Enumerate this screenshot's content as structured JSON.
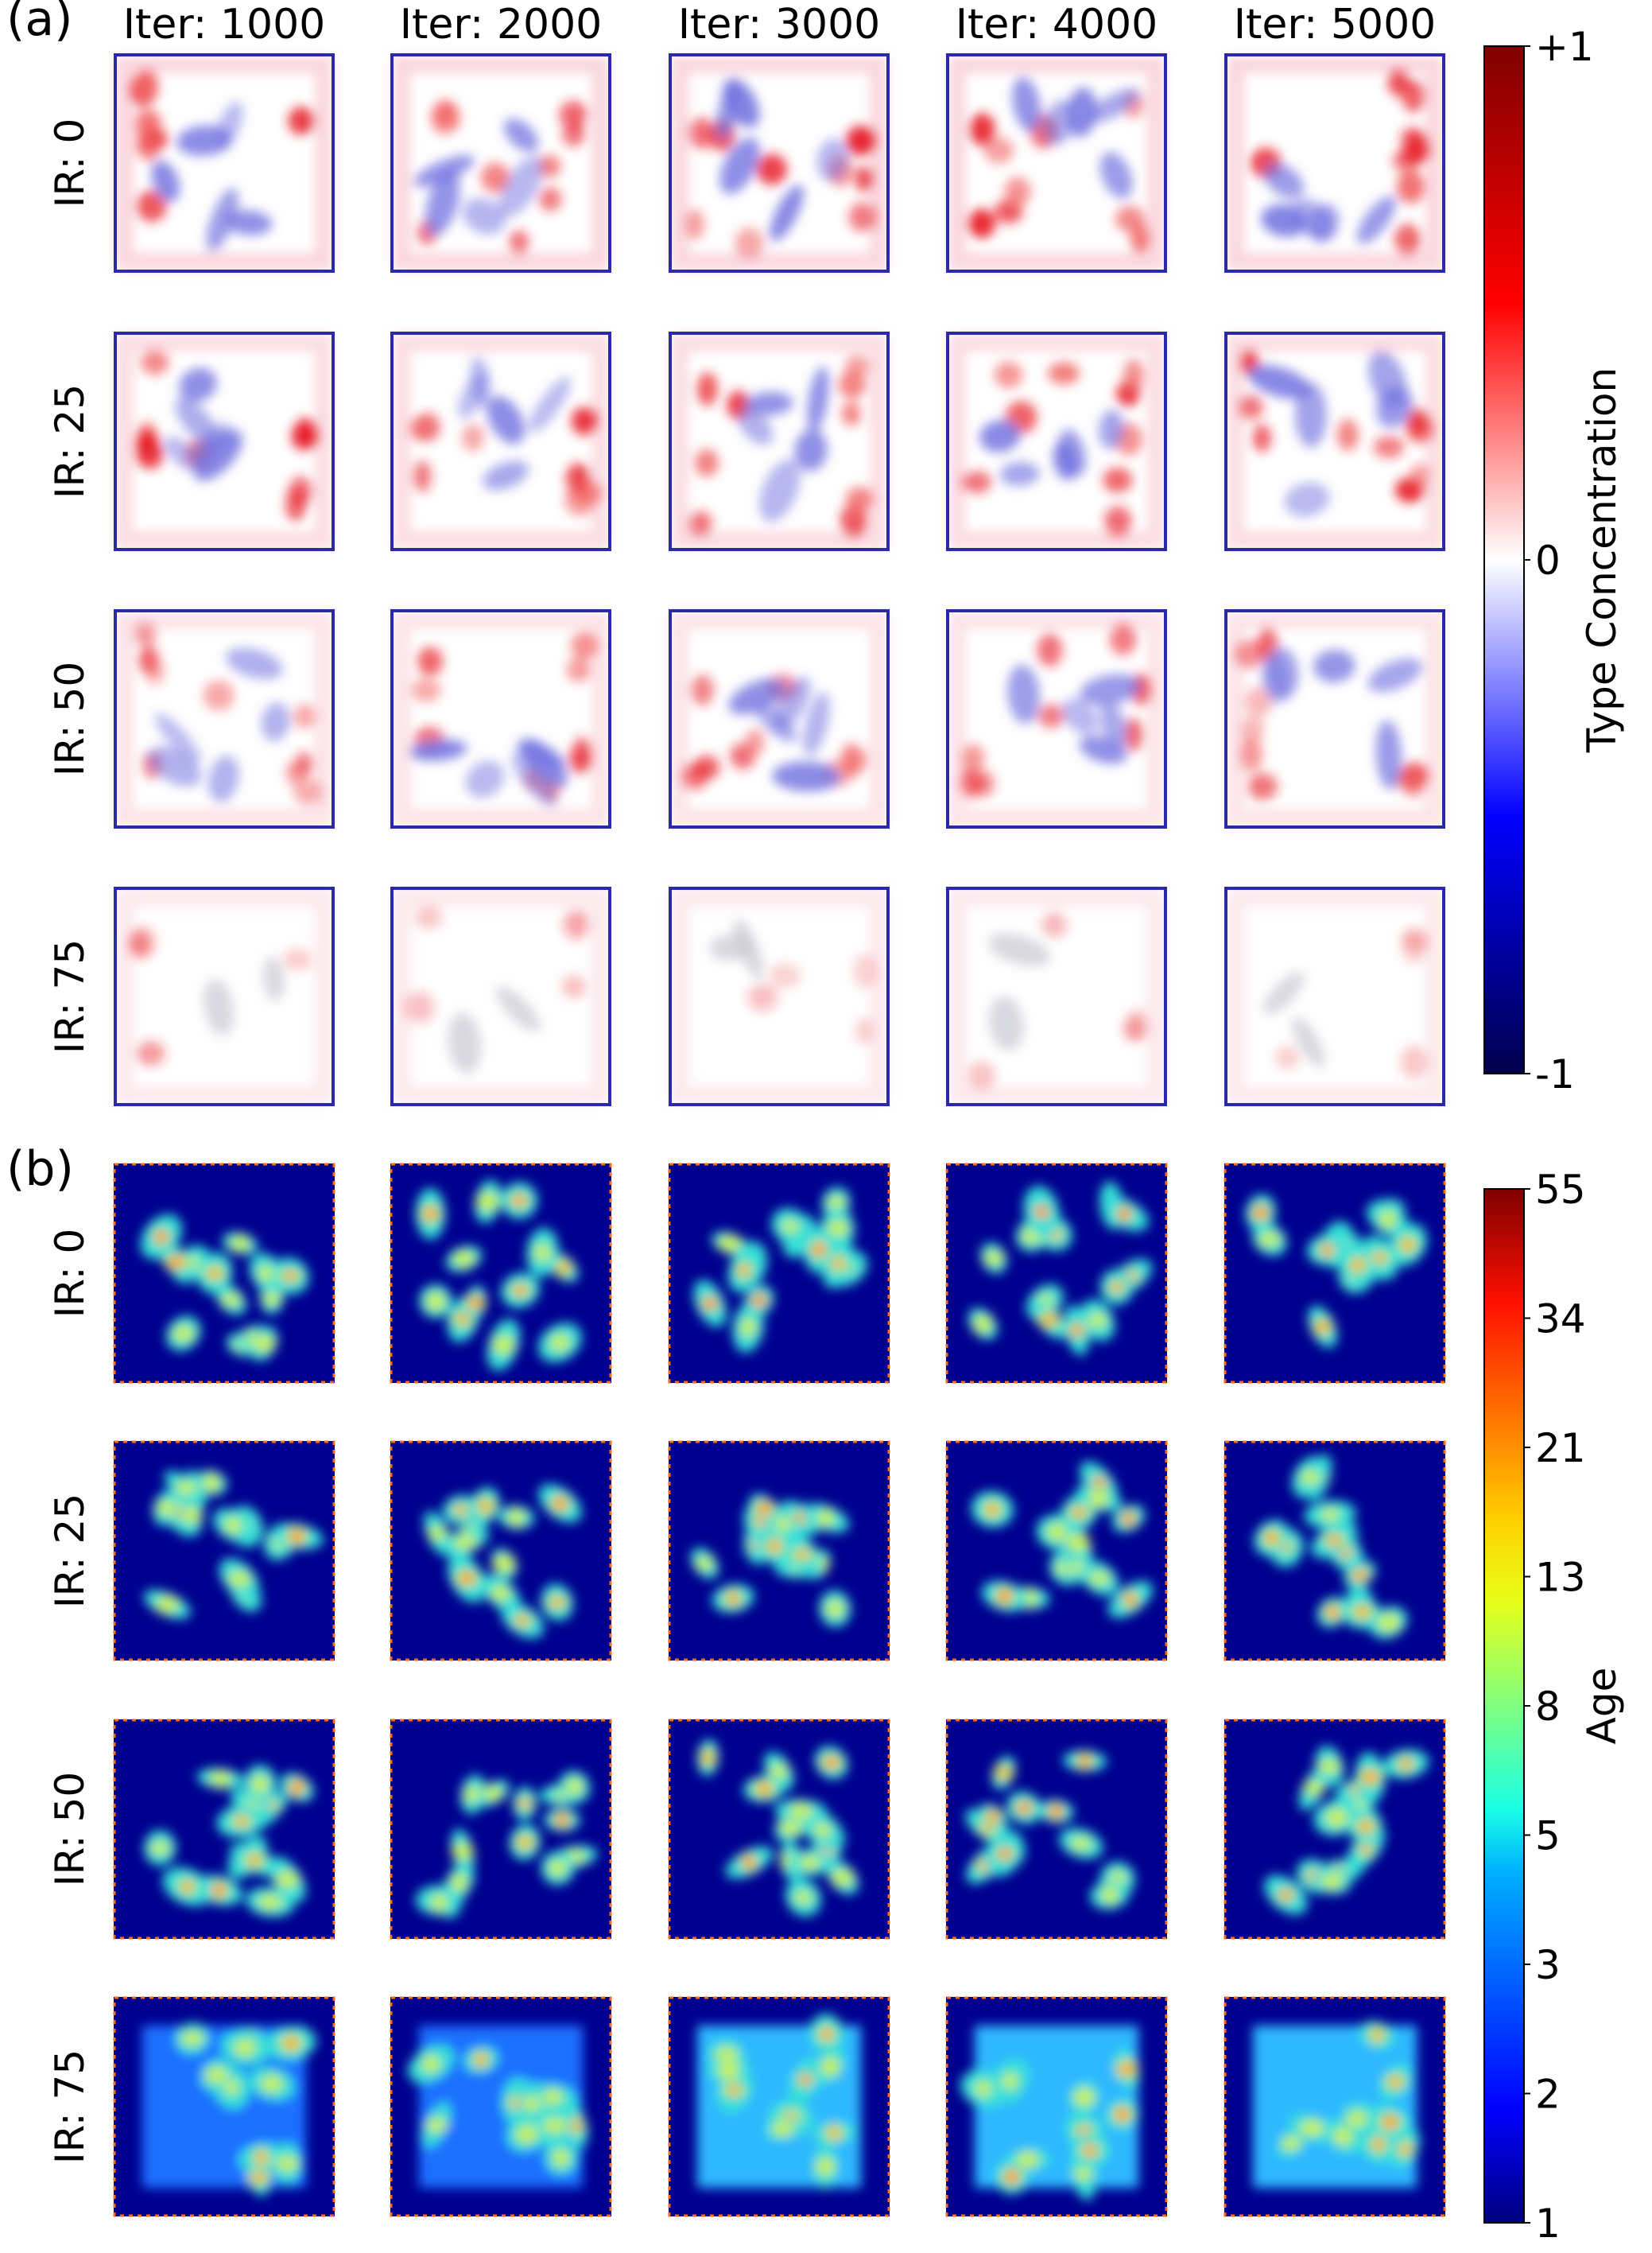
{
  "panels": [
    {
      "label": "(a)",
      "column_titles": [
        "Iter: 1000",
        "Iter: 2000",
        "Iter: 3000",
        "Iter: 4000",
        "Iter: 5000"
      ],
      "row_labels": [
        "IR: 0",
        "IR: 25",
        "IR: 50",
        "IR: 75"
      ],
      "colorbar": {
        "label": "Type Concentration",
        "ticks": [
          "+1",
          "0",
          "-1"
        ],
        "colormap": "seismic"
      }
    },
    {
      "label": "(b)",
      "row_labels": [
        "IR: 0",
        "IR: 25",
        "IR: 50",
        "IR: 75"
      ],
      "colorbar": {
        "label": "Age",
        "ticks": [
          "55",
          "34",
          "21",
          "13",
          "8",
          "5",
          "3",
          "2",
          "1"
        ],
        "colormap": "jet"
      }
    }
  ],
  "chart_data": [
    {
      "type": "heatmap",
      "title": "",
      "panel": "(a)",
      "columns": [
        "Iter: 1000",
        "Iter: 2000",
        "Iter: 3000",
        "Iter: 4000",
        "Iter: 5000"
      ],
      "rows": [
        "IR: 0",
        "IR: 25",
        "IR: 50",
        "IR: 75"
      ],
      "value_label": "Type Concentration",
      "vmin": -1,
      "vmax": 1,
      "colormap": "seismic",
      "grid": false
    },
    {
      "type": "heatmap",
      "title": "",
      "panel": "(b)",
      "columns": [
        "Iter: 1000",
        "Iter: 2000",
        "Iter: 3000",
        "Iter: 4000",
        "Iter: 5000"
      ],
      "rows": [
        "IR: 0",
        "IR: 25",
        "IR: 50",
        "IR: 75"
      ],
      "value_label": "Age",
      "vmin": 1,
      "vmax": 55,
      "scale": "log",
      "colorbar_ticks": [
        1,
        2,
        3,
        5,
        8,
        13,
        21,
        34,
        55
      ],
      "colormap": "jet",
      "grid": false
    }
  ]
}
